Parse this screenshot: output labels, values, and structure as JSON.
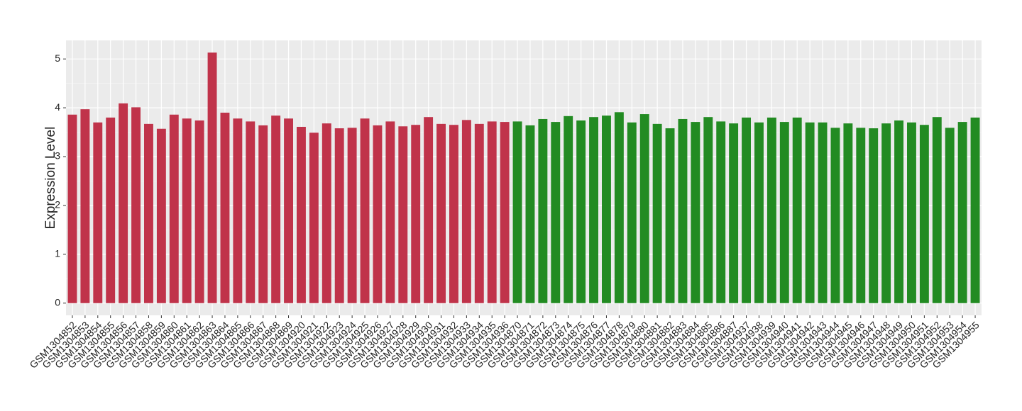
{
  "chart_data": {
    "type": "bar",
    "y_label": "Expression Level",
    "categories": [
      "GSM1304852",
      "GSM1304853",
      "GSM1304854",
      "GSM1304855",
      "GSM1304856",
      "GSM1304857",
      "GSM1304858",
      "GSM1304859",
      "GSM1304860",
      "GSM1304861",
      "GSM1304862",
      "GSM1304863",
      "GSM1304864",
      "GSM1304865",
      "GSM1304866",
      "GSM1304867",
      "GSM1304868",
      "GSM1304869",
      "GSM1304920",
      "GSM1304921",
      "GSM1304922",
      "GSM1304923",
      "GSM1304924",
      "GSM1304925",
      "GSM1304926",
      "GSM1304927",
      "GSM1304928",
      "GSM1304929",
      "GSM1304930",
      "GSM1304931",
      "GSM1304932",
      "GSM1304933",
      "GSM1304934",
      "GSM1304935",
      "GSM1304936",
      "GSM1304870",
      "GSM1304871",
      "GSM1304872",
      "GSM1304873",
      "GSM1304874",
      "GSM1304875",
      "GSM1304876",
      "GSM1304877",
      "GSM1304878",
      "GSM1304879",
      "GSM1304880",
      "GSM1304881",
      "GSM1304882",
      "GSM1304883",
      "GSM1304884",
      "GSM1304885",
      "GSM1304886",
      "GSM1304887",
      "GSM1304937",
      "GSM1304938",
      "GSM1304939",
      "GSM1304940",
      "GSM1304941",
      "GSM1304942",
      "GSM1304943",
      "GSM1304944",
      "GSM1304945",
      "GSM1304946",
      "GSM1304947",
      "GSM1304948",
      "GSM1304949",
      "GSM1304950",
      "GSM1304951",
      "GSM1304952",
      "GSM1304953",
      "GSM1304954",
      "GSM1304955"
    ],
    "values": [
      3.86,
      3.97,
      3.7,
      3.8,
      4.09,
      4.01,
      3.67,
      3.57,
      3.86,
      3.78,
      3.74,
      5.13,
      3.9,
      3.78,
      3.72,
      3.64,
      3.84,
      3.78,
      3.61,
      3.49,
      3.68,
      3.58,
      3.59,
      3.78,
      3.64,
      3.72,
      3.62,
      3.65,
      3.81,
      3.67,
      3.65,
      3.75,
      3.67,
      3.72,
      3.71,
      3.72,
      3.64,
      3.77,
      3.71,
      3.83,
      3.74,
      3.81,
      3.84,
      3.91,
      3.7,
      3.87,
      3.67,
      3.58,
      3.77,
      3.71,
      3.81,
      3.72,
      3.68,
      3.8,
      3.7,
      3.8,
      3.71,
      3.8,
      3.7,
      3.7,
      3.59,
      3.68,
      3.59,
      3.58,
      3.68,
      3.74,
      3.7,
      3.65,
      3.81,
      3.59,
      3.71,
      3.8
    ],
    "colors": [
      "#c0334a",
      "#c0334a",
      "#c0334a",
      "#c0334a",
      "#c0334a",
      "#c0334a",
      "#c0334a",
      "#c0334a",
      "#c0334a",
      "#c0334a",
      "#c0334a",
      "#c0334a",
      "#c0334a",
      "#c0334a",
      "#c0334a",
      "#c0334a",
      "#c0334a",
      "#c0334a",
      "#c0334a",
      "#c0334a",
      "#c0334a",
      "#c0334a",
      "#c0334a",
      "#c0334a",
      "#c0334a",
      "#c0334a",
      "#c0334a",
      "#c0334a",
      "#c0334a",
      "#c0334a",
      "#c0334a",
      "#c0334a",
      "#c0334a",
      "#c0334a",
      "#c0334a",
      "#228b22",
      "#228b22",
      "#228b22",
      "#228b22",
      "#228b22",
      "#228b22",
      "#228b22",
      "#228b22",
      "#228b22",
      "#228b22",
      "#228b22",
      "#228b22",
      "#228b22",
      "#228b22",
      "#228b22",
      "#228b22",
      "#228b22",
      "#228b22",
      "#228b22",
      "#228b22",
      "#228b22",
      "#228b22",
      "#228b22",
      "#228b22",
      "#228b22",
      "#228b22",
      "#228b22",
      "#228b22",
      "#228b22",
      "#228b22",
      "#228b22",
      "#228b22",
      "#228b22",
      "#228b22",
      "#228b22",
      "#228b22",
      "#228b22"
    ],
    "ylim": [
      -0.25,
      5.38
    ],
    "yticks": [
      0,
      1,
      2,
      3,
      4,
      5
    ],
    "grid": true
  }
}
